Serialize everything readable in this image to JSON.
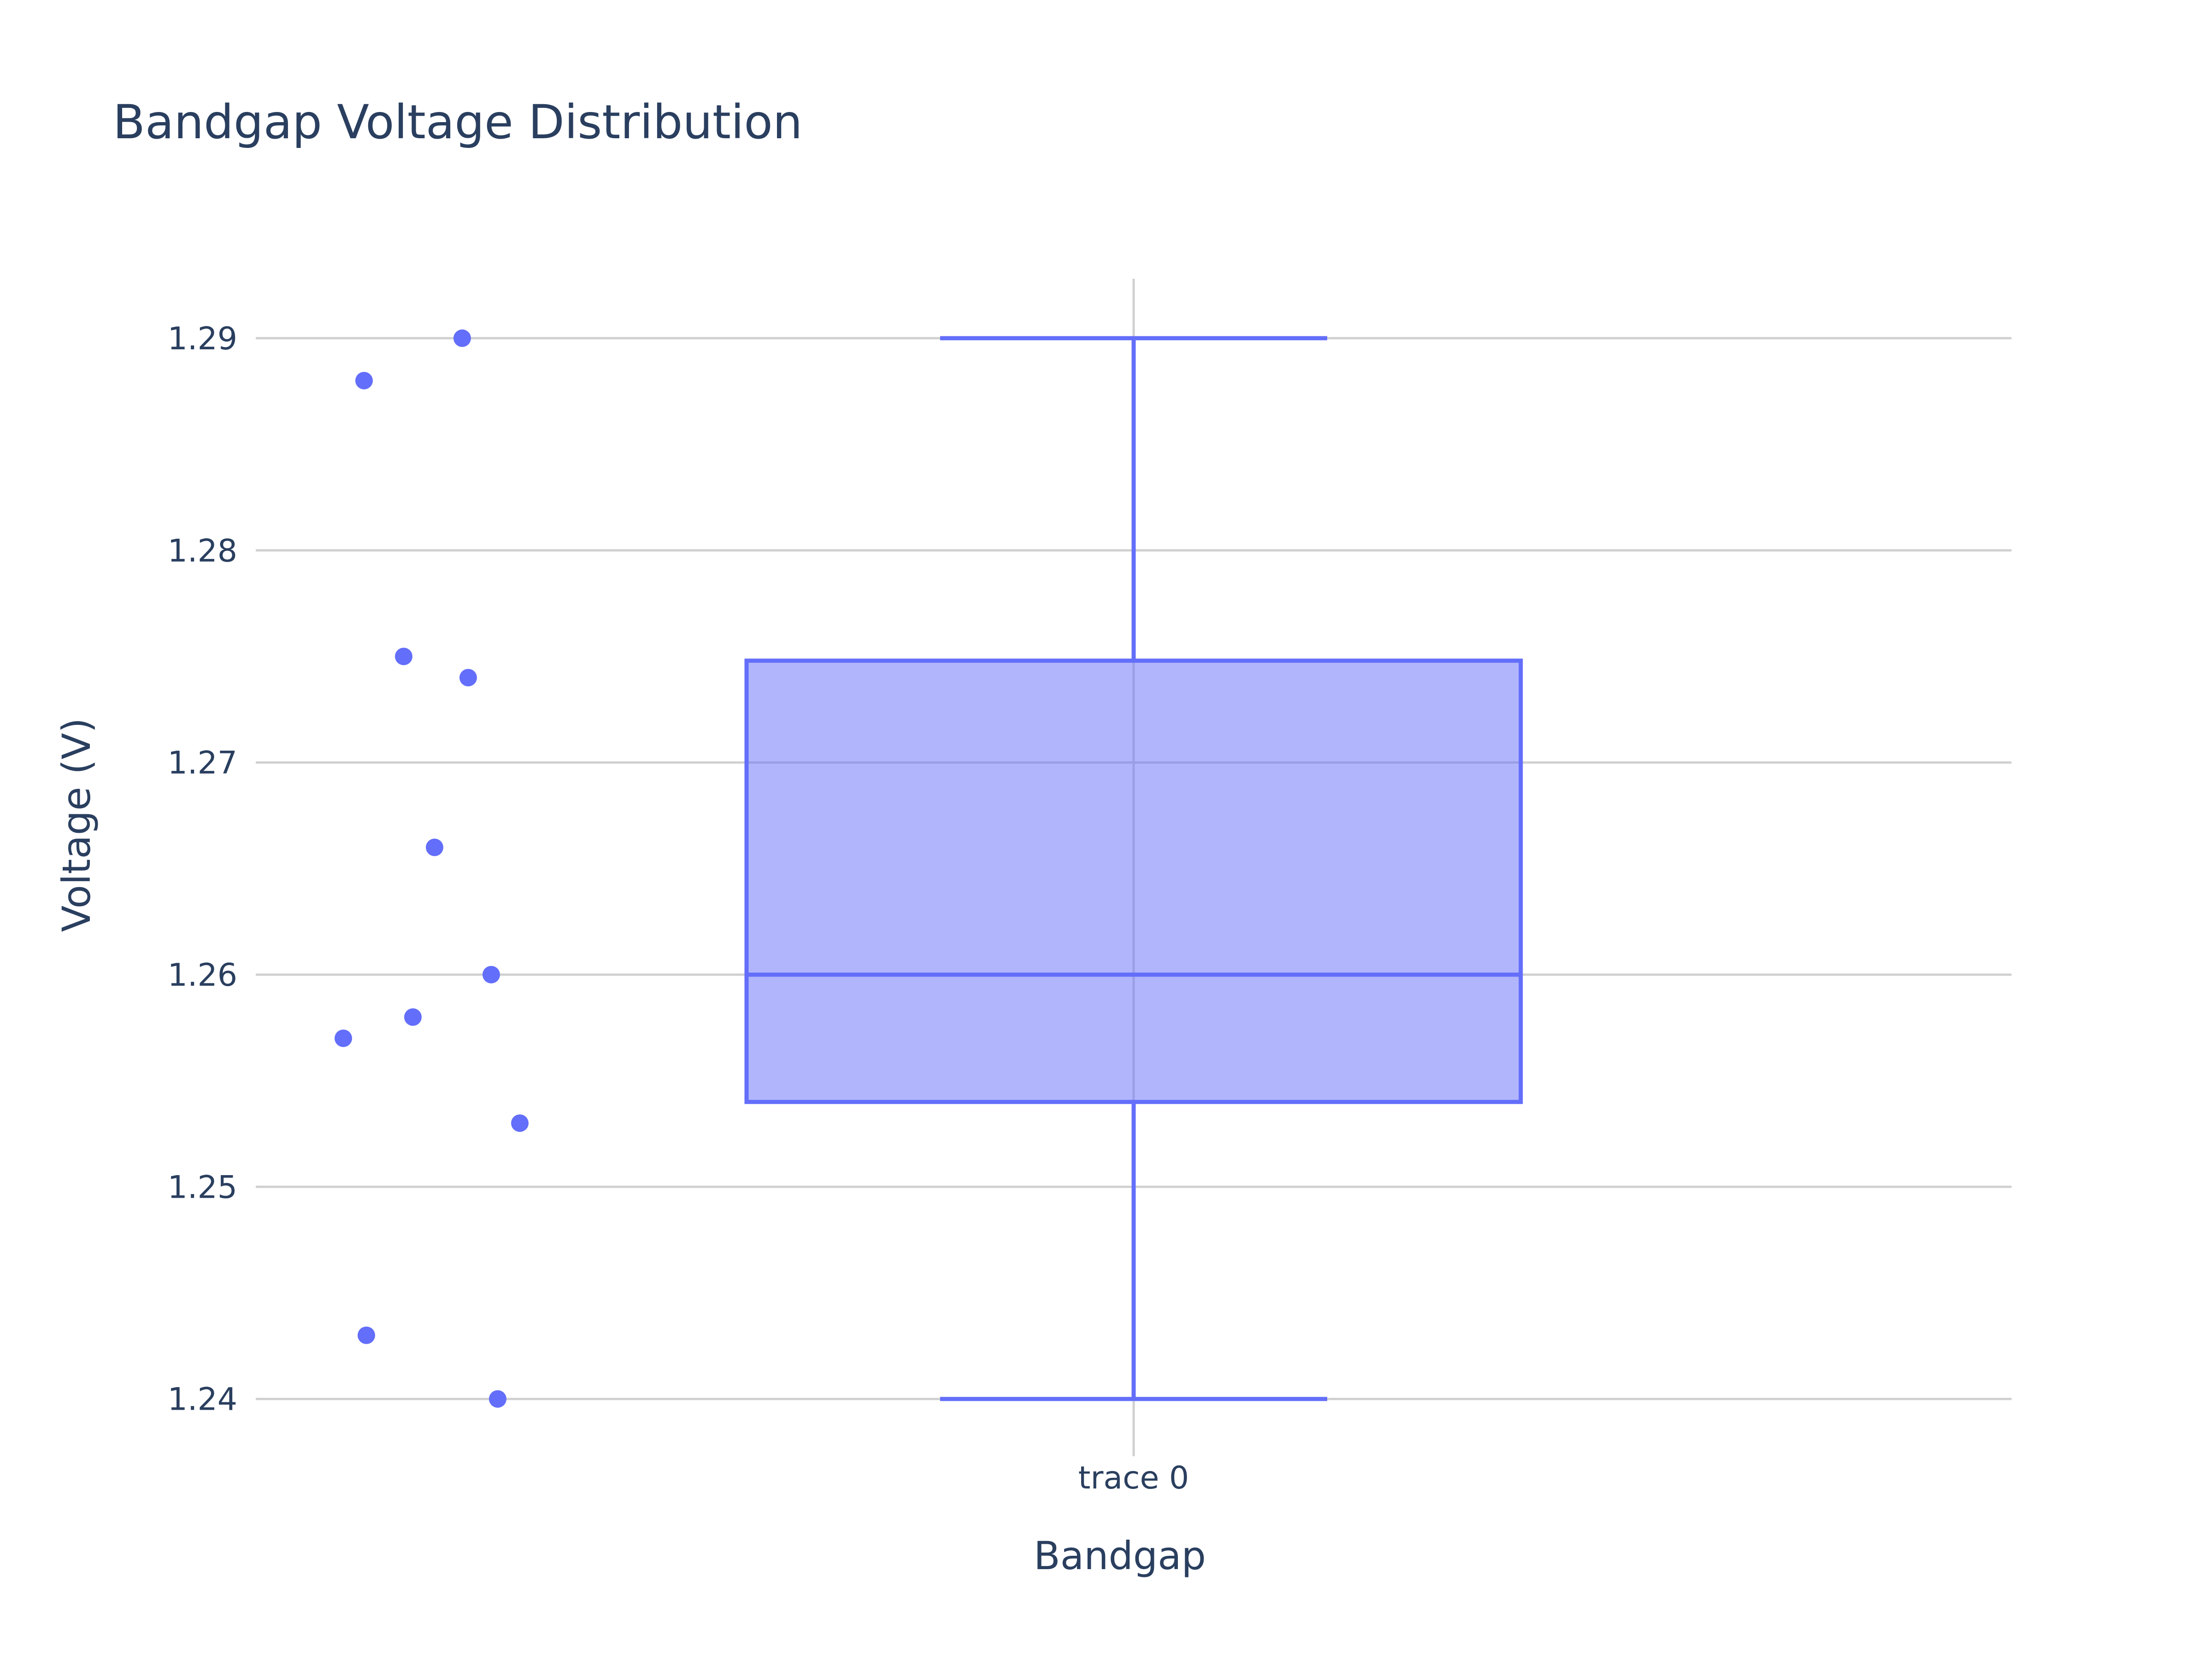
{
  "chart_data": {
    "type": "box",
    "title": "Bandgap Voltage Distribution",
    "xlabel": "Bandgap",
    "ylabel": "Voltage (V)",
    "categories": [
      "trace 0"
    ],
    "ylim": [
      1.2373,
      1.2928
    ],
    "yticks": [
      1.24,
      1.25,
      1.26,
      1.27,
      1.28,
      1.29
    ],
    "ytick_labels": [
      "1.24",
      "1.25",
      "1.26",
      "1.27",
      "1.28",
      "1.29"
    ],
    "grid": true,
    "series": [
      {
        "category": "trace 0",
        "points": [
          1.29,
          1.288,
          1.275,
          1.274,
          1.266,
          1.26,
          1.258,
          1.257,
          1.253,
          1.243,
          1.24
        ],
        "min": 1.24,
        "q1": 1.254,
        "median": 1.26,
        "q3": 1.2748,
        "max": 1.29
      }
    ],
    "colors": {
      "marker": "#636efa",
      "box_fill": "#636efa",
      "box_fill_opacity": 0.5,
      "text": "#2a3f5f",
      "grid": "#d0d0d0"
    }
  }
}
